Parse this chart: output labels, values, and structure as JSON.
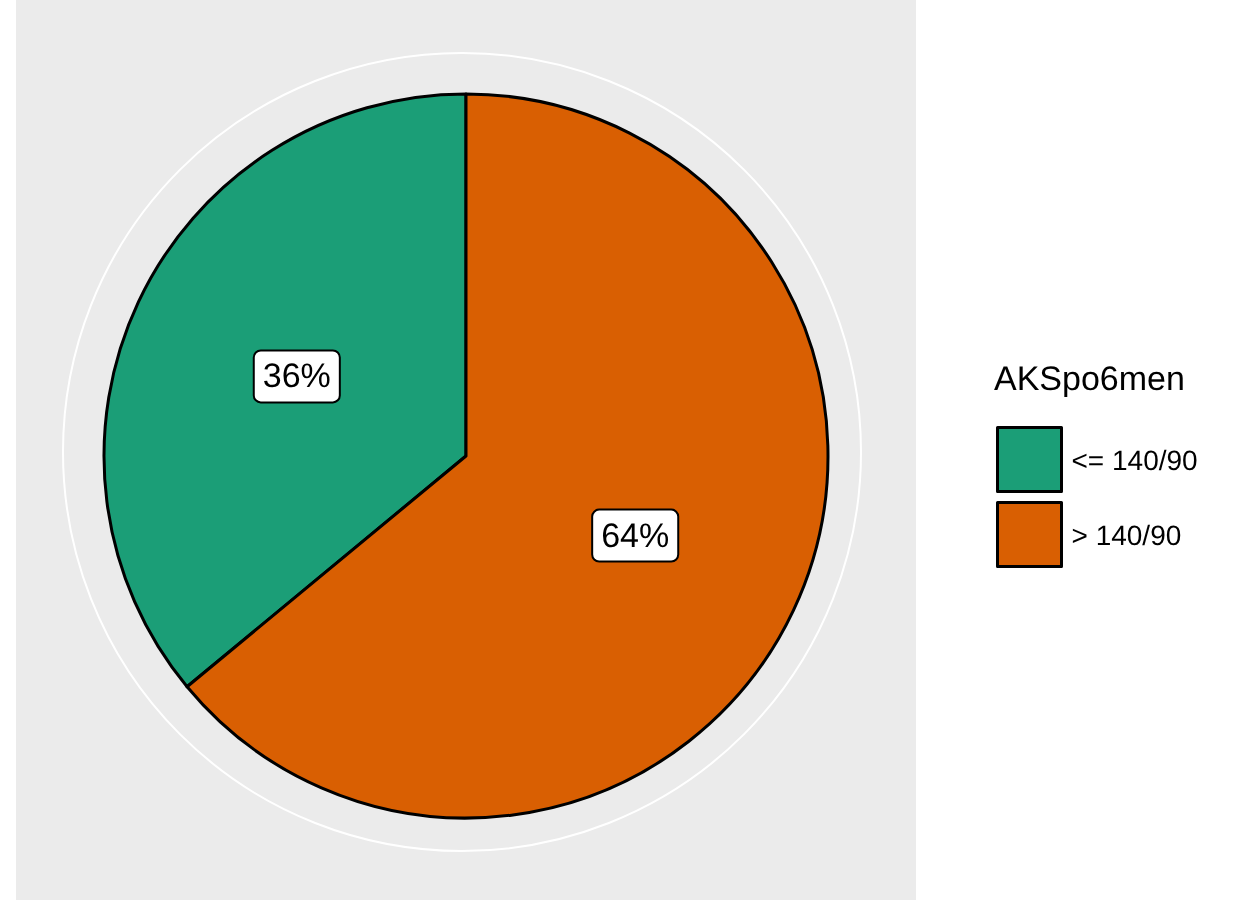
{
  "chart_data": {
    "type": "pie",
    "legend_title": "AKSpo6men",
    "categories": [
      "<= 140/90",
      "> 140/90"
    ],
    "values": [
      36,
      64
    ],
    "colors": [
      "#1b9e77",
      "#d95f02"
    ],
    "value_labels": [
      "36%",
      "64%"
    ],
    "legend": "right"
  }
}
